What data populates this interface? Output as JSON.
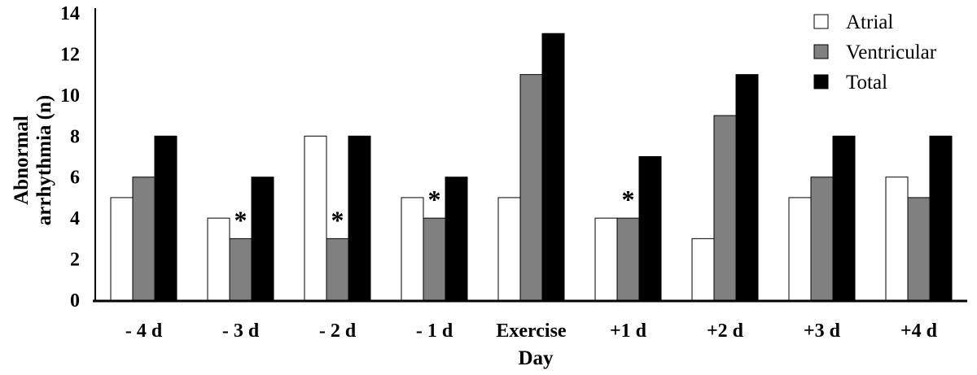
{
  "chart_data": {
    "type": "bar",
    "title": "",
    "xlabel": "Day",
    "ylabel_lines": [
      "Abnormal",
      "arrhythmia (n)"
    ],
    "ylim": [
      0,
      14
    ],
    "yticks": [
      "0",
      "2",
      "4",
      "6",
      "8",
      "10",
      "12",
      "14"
    ],
    "categories": [
      "- 4 d",
      "- 3 d",
      "- 2 d",
      "- 1 d",
      "Exercise",
      "+1 d",
      "+2 d",
      "+3 d",
      "+4 d"
    ],
    "series": [
      {
        "name": "Atrial",
        "color": "#ffffff",
        "values": [
          5,
          4,
          8,
          5,
          5,
          4,
          3,
          5,
          6
        ]
      },
      {
        "name": "Ventricular",
        "color": "#808080",
        "values": [
          6,
          3,
          3,
          4,
          11,
          4,
          9,
          6,
          5
        ]
      },
      {
        "name": "Total",
        "color": "#000000",
        "values": [
          8,
          6,
          8,
          6,
          13,
          7,
          11,
          8,
          8
        ]
      }
    ],
    "annotations": [
      {
        "category_index": 1,
        "text": "*"
      },
      {
        "category_index": 2,
        "text": "*"
      },
      {
        "category_index": 3,
        "text": "*"
      },
      {
        "category_index": 5,
        "text": "*"
      }
    ],
    "grid": false,
    "legend_position": "top-right"
  }
}
